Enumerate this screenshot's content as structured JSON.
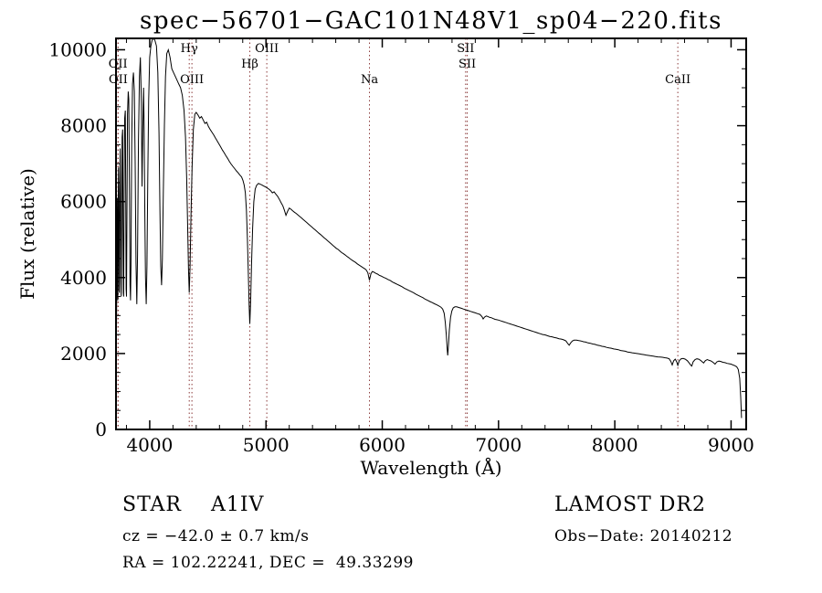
{
  "annotations": {
    "star_type": "STAR    A1IV",
    "survey": "LAMOST DR2",
    "cz": "cz = −42.0 ± 0.7 km/s",
    "obs_date": "Obs−Date: 20140212",
    "ra_dec": "RA = 102.22241, DEC =  49.33299"
  },
  "colors": {
    "spectrum_line": "#000000",
    "marker_line": "#8b3a3a",
    "background": "#ffffff"
  },
  "chart_data": {
    "type": "line",
    "title": "spec−56701−GAC101N48V1_sp04−220.fits",
    "xlabel": "Wavelength (Å)",
    "ylabel": "Flux (relative)",
    "xlim": [
      3710,
      9130
    ],
    "ylim": [
      0,
      10300
    ],
    "xticks": [
      4000,
      5000,
      6000,
      7000,
      8000,
      9000
    ],
    "yticks": [
      0,
      2000,
      4000,
      6000,
      8000,
      10000
    ],
    "x_minor_step": 200,
    "y_minor_step": 500,
    "legend": "none",
    "grid": false,
    "spectral_lines": [
      {
        "label": "OII",
        "wavelength": 3727,
        "level": 1
      },
      {
        "label": "OII",
        "wavelength": 3729,
        "level": 2
      },
      {
        "label": "Hγ",
        "wavelength": 4340,
        "level": 0
      },
      {
        "label": "OIII",
        "wavelength": 4363,
        "level": 2
      },
      {
        "label": "Hβ",
        "wavelength": 4861,
        "level": 1
      },
      {
        "label": "OIII",
        "wavelength": 5007,
        "level": 0
      },
      {
        "label": "Na",
        "wavelength": 5890,
        "level": 2
      },
      {
        "label": "SII",
        "wavelength": 6717,
        "level": 0
      },
      {
        "label": "SII",
        "wavelength": 6731,
        "level": 1
      },
      {
        "label": "CaII",
        "wavelength": 8542,
        "level": 2
      }
    ],
    "points": [
      [
        3712,
        900
      ],
      [
        3714,
        2600
      ],
      [
        3716,
        3600
      ],
      [
        3718,
        5200
      ],
      [
        3720,
        6100
      ],
      [
        3722,
        4700
      ],
      [
        3724,
        3500
      ],
      [
        3726,
        3400
      ],
      [
        3728,
        5600
      ],
      [
        3731,
        6900
      ],
      [
        3734,
        5200
      ],
      [
        3736,
        3700
      ],
      [
        3739,
        3600
      ],
      [
        3742,
        6300
      ],
      [
        3746,
        7400
      ],
      [
        3749,
        6200
      ],
      [
        3752,
        3900
      ],
      [
        3755,
        3500
      ],
      [
        3759,
        5600
      ],
      [
        3763,
        7700
      ],
      [
        3767,
        7900
      ],
      [
        3770,
        5400
      ],
      [
        3773,
        3600
      ],
      [
        3776,
        3500
      ],
      [
        3780,
        6200
      ],
      [
        3785,
        8200
      ],
      [
        3790,
        8400
      ],
      [
        3794,
        6200
      ],
      [
        3797,
        3700
      ],
      [
        3800,
        3500
      ],
      [
        3804,
        5600
      ],
      [
        3809,
        8300
      ],
      [
        3815,
        8900
      ],
      [
        3820,
        8700
      ],
      [
        3826,
        6200
      ],
      [
        3831,
        3800
      ],
      [
        3835,
        3400
      ],
      [
        3839,
        4300
      ],
      [
        3845,
        7500
      ],
      [
        3852,
        9100
      ],
      [
        3860,
        9400
      ],
      [
        3868,
        8900
      ],
      [
        3875,
        7000
      ],
      [
        3882,
        4400
      ],
      [
        3889,
        3300
      ],
      [
        3895,
        4600
      ],
      [
        3903,
        7600
      ],
      [
        3912,
        9300
      ],
      [
        3920,
        9800
      ],
      [
        3928,
        8600
      ],
      [
        3934,
        6400
      ],
      [
        3940,
        7800
      ],
      [
        3947,
        9000
      ],
      [
        3952,
        8000
      ],
      [
        3958,
        5600
      ],
      [
        3964,
        4000
      ],
      [
        3970,
        3300
      ],
      [
        3976,
        4300
      ],
      [
        3983,
        6600
      ],
      [
        3991,
        8700
      ],
      [
        4000,
        9800
      ],
      [
        4010,
        10100
      ],
      [
        4020,
        10250
      ],
      [
        4032,
        10300
      ],
      [
        4045,
        10250
      ],
      [
        4058,
        10100
      ],
      [
        4070,
        9400
      ],
      [
        4080,
        7800
      ],
      [
        4088,
        5800
      ],
      [
        4095,
        4300
      ],
      [
        4102,
        3800
      ],
      [
        4109,
        4500
      ],
      [
        4117,
        6200
      ],
      [
        4126,
        8000
      ],
      [
        4136,
        9300
      ],
      [
        4147,
        9900
      ],
      [
        4160,
        10000
      ],
      [
        4175,
        9800
      ],
      [
        4190,
        9500
      ],
      [
        4205,
        9400
      ],
      [
        4220,
        9300
      ],
      [
        4235,
        9200
      ],
      [
        4250,
        9100
      ],
      [
        4265,
        9000
      ],
      [
        4280,
        8800
      ],
      [
        4295,
        8400
      ],
      [
        4308,
        7700
      ],
      [
        4318,
        6600
      ],
      [
        4327,
        5300
      ],
      [
        4334,
        4200
      ],
      [
        4340,
        3600
      ],
      [
        4347,
        4300
      ],
      [
        4355,
        5600
      ],
      [
        4364,
        6900
      ],
      [
        4375,
        7900
      ],
      [
        4388,
        8300
      ],
      [
        4400,
        8350
      ],
      [
        4415,
        8280
      ],
      [
        4430,
        8200
      ],
      [
        4445,
        8240
      ],
      [
        4460,
        8150
      ],
      [
        4475,
        8060
      ],
      [
        4490,
        8090
      ],
      [
        4505,
        7980
      ],
      [
        4520,
        7900
      ],
      [
        4535,
        7830
      ],
      [
        4550,
        7760
      ],
      [
        4565,
        7680
      ],
      [
        4580,
        7600
      ],
      [
        4595,
        7520
      ],
      [
        4610,
        7440
      ],
      [
        4625,
        7360
      ],
      [
        4640,
        7290
      ],
      [
        4655,
        7210
      ],
      [
        4670,
        7140
      ],
      [
        4685,
        7060
      ],
      [
        4700,
        6990
      ],
      [
        4715,
        6930
      ],
      [
        4730,
        6870
      ],
      [
        4745,
        6810
      ],
      [
        4760,
        6760
      ],
      [
        4775,
        6700
      ],
      [
        4790,
        6650
      ],
      [
        4802,
        6560
      ],
      [
        4812,
        6440
      ],
      [
        4822,
        6240
      ],
      [
        4832,
        5780
      ],
      [
        4840,
        5000
      ],
      [
        4848,
        4100
      ],
      [
        4855,
        3250
      ],
      [
        4861,
        2780
      ],
      [
        4868,
        3350
      ],
      [
        4876,
        4350
      ],
      [
        4885,
        5300
      ],
      [
        4895,
        6000
      ],
      [
        4907,
        6330
      ],
      [
        4920,
        6430
      ],
      [
        4935,
        6480
      ],
      [
        4950,
        6460
      ],
      [
        4965,
        6440
      ],
      [
        4980,
        6410
      ],
      [
        4995,
        6390
      ],
      [
        5010,
        6360
      ],
      [
        5025,
        6330
      ],
      [
        5040,
        6290
      ],
      [
        5055,
        6230
      ],
      [
        5070,
        6260
      ],
      [
        5085,
        6200
      ],
      [
        5100,
        6140
      ],
      [
        5115,
        6060
      ],
      [
        5130,
        5970
      ],
      [
        5145,
        5890
      ],
      [
        5158,
        5780
      ],
      [
        5172,
        5640
      ],
      [
        5185,
        5740
      ],
      [
        5200,
        5830
      ],
      [
        5215,
        5800
      ],
      [
        5230,
        5760
      ],
      [
        5245,
        5720
      ],
      [
        5260,
        5690
      ],
      [
        5275,
        5650
      ],
      [
        5290,
        5610
      ],
      [
        5305,
        5570
      ],
      [
        5320,
        5530
      ],
      [
        5335,
        5490
      ],
      [
        5350,
        5450
      ],
      [
        5365,
        5410
      ],
      [
        5380,
        5370
      ],
      [
        5395,
        5330
      ],
      [
        5410,
        5290
      ],
      [
        5425,
        5250
      ],
      [
        5440,
        5210
      ],
      [
        5455,
        5170
      ],
      [
        5470,
        5130
      ],
      [
        5485,
        5090
      ],
      [
        5500,
        5050
      ],
      [
        5515,
        5010
      ],
      [
        5530,
        4970
      ],
      [
        5545,
        4930
      ],
      [
        5560,
        4890
      ],
      [
        5575,
        4850
      ],
      [
        5590,
        4810
      ],
      [
        5605,
        4770
      ],
      [
        5620,
        4740
      ],
      [
        5635,
        4700
      ],
      [
        5650,
        4660
      ],
      [
        5665,
        4630
      ],
      [
        5680,
        4600
      ],
      [
        5695,
        4560
      ],
      [
        5710,
        4530
      ],
      [
        5725,
        4490
      ],
      [
        5740,
        4460
      ],
      [
        5755,
        4430
      ],
      [
        5770,
        4400
      ],
      [
        5785,
        4360
      ],
      [
        5800,
        4330
      ],
      [
        5815,
        4300
      ],
      [
        5830,
        4270
      ],
      [
        5845,
        4240
      ],
      [
        5860,
        4210
      ],
      [
        5876,
        4130
      ],
      [
        5890,
        3930
      ],
      [
        5902,
        4100
      ],
      [
        5915,
        4160
      ],
      [
        5930,
        4140
      ],
      [
        5945,
        4110
      ],
      [
        5960,
        4090
      ],
      [
        5975,
        4060
      ],
      [
        5990,
        4040
      ],
      [
        6010,
        4010
      ],
      [
        6030,
        3980
      ],
      [
        6050,
        3950
      ],
      [
        6070,
        3920
      ],
      [
        6090,
        3880
      ],
      [
        6110,
        3850
      ],
      [
        6130,
        3820
      ],
      [
        6150,
        3790
      ],
      [
        6170,
        3760
      ],
      [
        6190,
        3720
      ],
      [
        6210,
        3690
      ],
      [
        6230,
        3660
      ],
      [
        6250,
        3630
      ],
      [
        6270,
        3600
      ],
      [
        6290,
        3560
      ],
      [
        6310,
        3530
      ],
      [
        6330,
        3500
      ],
      [
        6350,
        3470
      ],
      [
        6370,
        3430
      ],
      [
        6390,
        3400
      ],
      [
        6410,
        3370
      ],
      [
        6430,
        3340
      ],
      [
        6450,
        3310
      ],
      [
        6470,
        3280
      ],
      [
        6490,
        3250
      ],
      [
        6505,
        3220
      ],
      [
        6520,
        3170
      ],
      [
        6532,
        3060
      ],
      [
        6542,
        2830
      ],
      [
        6551,
        2480
      ],
      [
        6558,
        2120
      ],
      [
        6563,
        1950
      ],
      [
        6569,
        2220
      ],
      [
        6577,
        2620
      ],
      [
        6587,
        2950
      ],
      [
        6598,
        3120
      ],
      [
        6610,
        3200
      ],
      [
        6625,
        3230
      ],
      [
        6640,
        3230
      ],
      [
        6660,
        3210
      ],
      [
        6680,
        3190
      ],
      [
        6700,
        3170
      ],
      [
        6720,
        3150
      ],
      [
        6740,
        3130
      ],
      [
        6760,
        3110
      ],
      [
        6780,
        3090
      ],
      [
        6800,
        3070
      ],
      [
        6820,
        3050
      ],
      [
        6840,
        3030
      ],
      [
        6858,
        2970
      ],
      [
        6868,
        2910
      ],
      [
        6880,
        2960
      ],
      [
        6895,
        2990
      ],
      [
        6910,
        2970
      ],
      [
        6925,
        2950
      ],
      [
        6940,
        2940
      ],
      [
        6955,
        2920
      ],
      [
        6970,
        2900
      ],
      [
        6985,
        2890
      ],
      [
        7000,
        2880
      ],
      [
        7020,
        2860
      ],
      [
        7040,
        2840
      ],
      [
        7060,
        2820
      ],
      [
        7080,
        2800
      ],
      [
        7100,
        2780
      ],
      [
        7120,
        2760
      ],
      [
        7140,
        2740
      ],
      [
        7160,
        2720
      ],
      [
        7180,
        2700
      ],
      [
        7200,
        2680
      ],
      [
        7220,
        2660
      ],
      [
        7240,
        2640
      ],
      [
        7260,
        2620
      ],
      [
        7280,
        2600
      ],
      [
        7300,
        2580
      ],
      [
        7320,
        2560
      ],
      [
        7340,
        2540
      ],
      [
        7360,
        2520
      ],
      [
        7380,
        2500
      ],
      [
        7400,
        2490
      ],
      [
        7420,
        2470
      ],
      [
        7440,
        2450
      ],
      [
        7460,
        2440
      ],
      [
        7480,
        2420
      ],
      [
        7500,
        2410
      ],
      [
        7520,
        2390
      ],
      [
        7540,
        2380
      ],
      [
        7560,
        2360
      ],
      [
        7580,
        2330
      ],
      [
        7596,
        2260
      ],
      [
        7608,
        2220
      ],
      [
        7620,
        2280
      ],
      [
        7635,
        2330
      ],
      [
        7650,
        2350
      ],
      [
        7670,
        2350
      ],
      [
        7690,
        2340
      ],
      [
        7710,
        2330
      ],
      [
        7730,
        2310
      ],
      [
        7750,
        2300
      ],
      [
        7770,
        2280
      ],
      [
        7790,
        2270
      ],
      [
        7810,
        2250
      ],
      [
        7830,
        2240
      ],
      [
        7850,
        2220
      ],
      [
        7870,
        2210
      ],
      [
        7890,
        2190
      ],
      [
        7910,
        2180
      ],
      [
        7930,
        2160
      ],
      [
        7950,
        2150
      ],
      [
        7970,
        2140
      ],
      [
        7990,
        2120
      ],
      [
        8010,
        2110
      ],
      [
        8030,
        2100
      ],
      [
        8050,
        2080
      ],
      [
        8070,
        2070
      ],
      [
        8090,
        2060
      ],
      [
        8110,
        2040
      ],
      [
        8130,
        2030
      ],
      [
        8150,
        2020
      ],
      [
        8170,
        2010
      ],
      [
        8190,
        2000
      ],
      [
        8210,
        1990
      ],
      [
        8230,
        1980
      ],
      [
        8250,
        1970
      ],
      [
        8270,
        1960
      ],
      [
        8290,
        1950
      ],
      [
        8310,
        1940
      ],
      [
        8330,
        1930
      ],
      [
        8350,
        1920
      ],
      [
        8370,
        1910
      ],
      [
        8390,
        1905
      ],
      [
        8410,
        1900
      ],
      [
        8430,
        1890
      ],
      [
        8450,
        1880
      ],
      [
        8468,
        1860
      ],
      [
        8482,
        1790
      ],
      [
        8494,
        1700
      ],
      [
        8506,
        1810
      ],
      [
        8520,
        1850
      ],
      [
        8532,
        1780
      ],
      [
        8542,
        1690
      ],
      [
        8554,
        1810
      ],
      [
        8570,
        1860
      ],
      [
        8588,
        1870
      ],
      [
        8606,
        1850
      ],
      [
        8624,
        1810
      ],
      [
        8640,
        1750
      ],
      [
        8654,
        1690
      ],
      [
        8662,
        1670
      ],
      [
        8674,
        1780
      ],
      [
        8690,
        1840
      ],
      [
        8706,
        1860
      ],
      [
        8722,
        1850
      ],
      [
        8738,
        1820
      ],
      [
        8752,
        1780
      ],
      [
        8764,
        1750
      ],
      [
        8778,
        1810
      ],
      [
        8795,
        1840
      ],
      [
        8812,
        1820
      ],
      [
        8830,
        1800
      ],
      [
        8848,
        1760
      ],
      [
        8862,
        1720
      ],
      [
        8878,
        1780
      ],
      [
        8895,
        1800
      ],
      [
        8912,
        1790
      ],
      [
        8930,
        1770
      ],
      [
        8948,
        1760
      ],
      [
        8966,
        1740
      ],
      [
        8984,
        1730
      ],
      [
        9000,
        1720
      ],
      [
        9016,
        1700
      ],
      [
        9032,
        1680
      ],
      [
        9048,
        1650
      ],
      [
        9062,
        1580
      ],
      [
        9074,
        1350
      ],
      [
        9083,
        850
      ],
      [
        9090,
        300
      ]
    ]
  }
}
